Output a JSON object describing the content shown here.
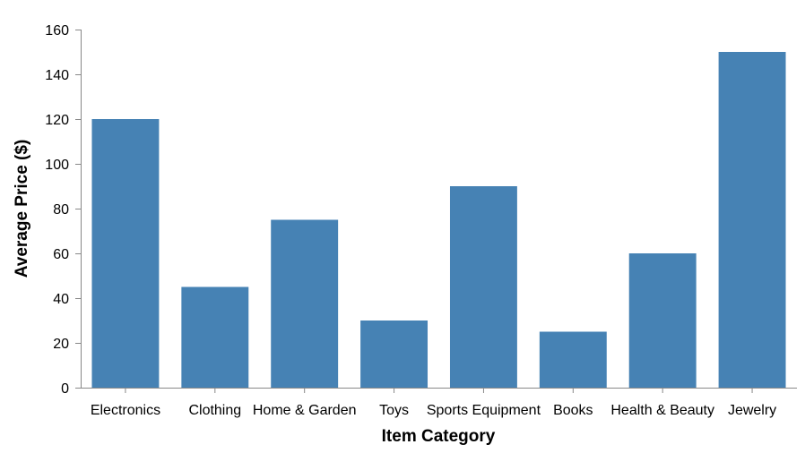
{
  "chart_data": {
    "type": "bar",
    "title": "",
    "xlabel": "Item Category",
    "ylabel": "Average Price ($)",
    "categories": [
      "Electronics",
      "Clothing",
      "Home & Garden",
      "Toys",
      "Sports Equipment",
      "Books",
      "Health & Beauty",
      "Jewelry"
    ],
    "values": [
      120,
      45,
      75,
      30,
      90,
      25,
      60,
      150
    ],
    "ylim": [
      0,
      160
    ],
    "yticks": [
      0,
      20,
      40,
      60,
      80,
      100,
      120,
      140,
      160
    ],
    "grid": false,
    "bar_color": "#4682b4",
    "axis_color": "#888888"
  }
}
